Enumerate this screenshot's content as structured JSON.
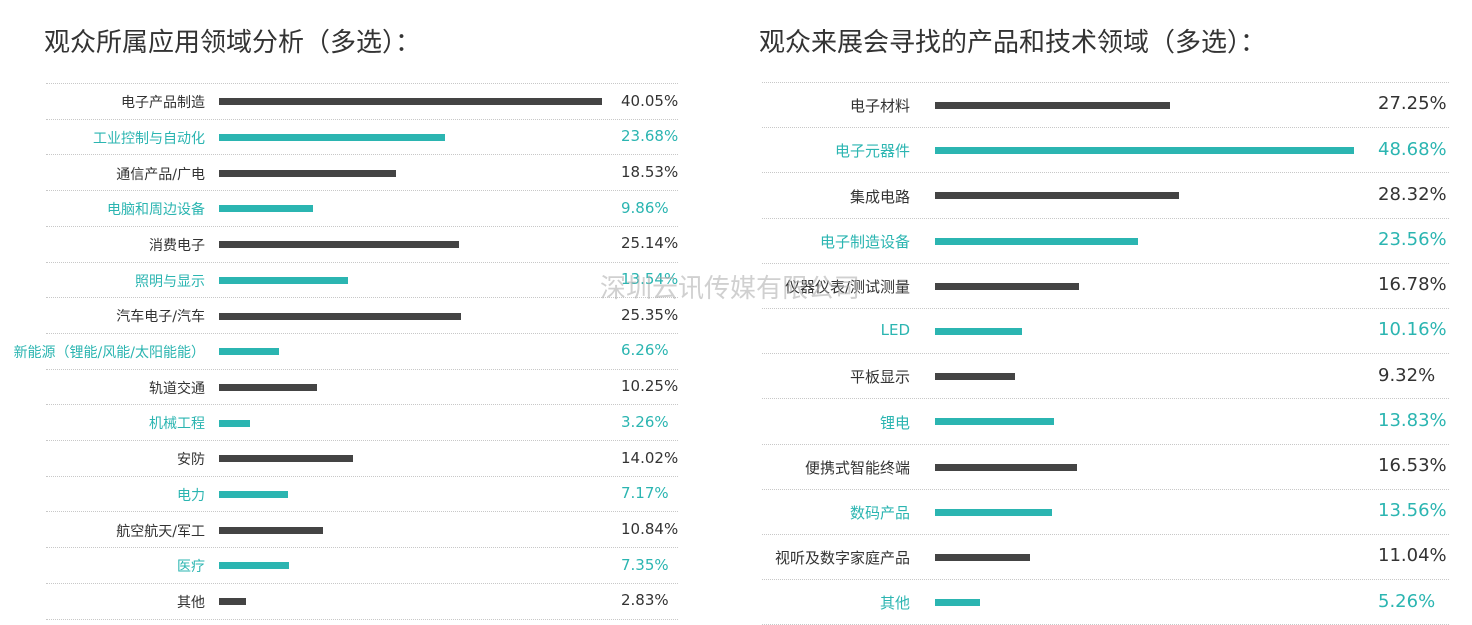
{
  "watermark": "深圳云讯传媒有限公司",
  "palette": {
    "dark": "#444444",
    "teal": "#2bb5b1",
    "text": "#333333",
    "separator": "#c8c8c8"
  },
  "chart_data": [
    {
      "type": "bar",
      "orientation": "horizontal",
      "title": "观众所属应用领域分析（多选）：",
      "unit": "%",
      "grid": false,
      "xlim": [
        0,
        40.05
      ],
      "categories": [
        "电子产品制造",
        "工业控制与自动化",
        "通信产品/广电",
        "电脑和周边设备",
        "消费电子",
        "照明与显示",
        "汽车电子/汽车",
        "新能源（锂能/风能/太阳能能）",
        "轨道交通",
        "机械工程",
        "安防",
        "电力",
        "航空航天/军工",
        "医疗",
        "其他"
      ],
      "values": [
        40.05,
        23.68,
        18.53,
        9.86,
        25.14,
        13.54,
        25.35,
        6.26,
        10.25,
        3.26,
        14.02,
        7.17,
        10.84,
        7.35,
        2.83
      ],
      "value_labels": [
        "40.05%",
        "23.68%",
        "18.53%",
        "9.86%",
        "25.14%",
        "13.54%",
        "25.35%",
        "6.26%",
        "10.25%",
        "3.26%",
        "14.02%",
        "7.17%",
        "10.84%",
        "7.35%",
        "2.83%"
      ],
      "row_colors": [
        "dark",
        "teal",
        "dark",
        "teal",
        "dark",
        "teal",
        "dark",
        "teal",
        "dark",
        "teal",
        "dark",
        "teal",
        "dark",
        "teal",
        "dark"
      ]
    },
    {
      "type": "bar",
      "orientation": "horizontal",
      "title": "观众来展会寻找的产品和技术领域（多选）：",
      "unit": "%",
      "grid": false,
      "xlim": [
        0,
        48.68
      ],
      "categories": [
        "电子材料",
        "电子元器件",
        "集成电路",
        "电子制造设备",
        "仪器仪表/测试测量",
        "LED",
        "平板显示",
        "锂电",
        "便携式智能终端",
        "数码产品",
        "视听及数字家庭产品",
        "其他"
      ],
      "values": [
        27.25,
        48.68,
        28.32,
        23.56,
        16.78,
        10.16,
        9.32,
        13.83,
        16.53,
        13.56,
        11.04,
        5.26
      ],
      "value_labels": [
        "27.25%",
        "48.68%",
        "28.32%",
        "23.56%",
        "16.78%",
        "10.16%",
        "9.32%",
        "13.83%",
        "16.53%",
        "13.56%",
        "11.04%",
        "5.26%"
      ],
      "row_colors": [
        "dark",
        "teal",
        "dark",
        "teal",
        "dark",
        "teal",
        "dark",
        "teal",
        "dark",
        "teal",
        "dark",
        "teal"
      ]
    }
  ]
}
